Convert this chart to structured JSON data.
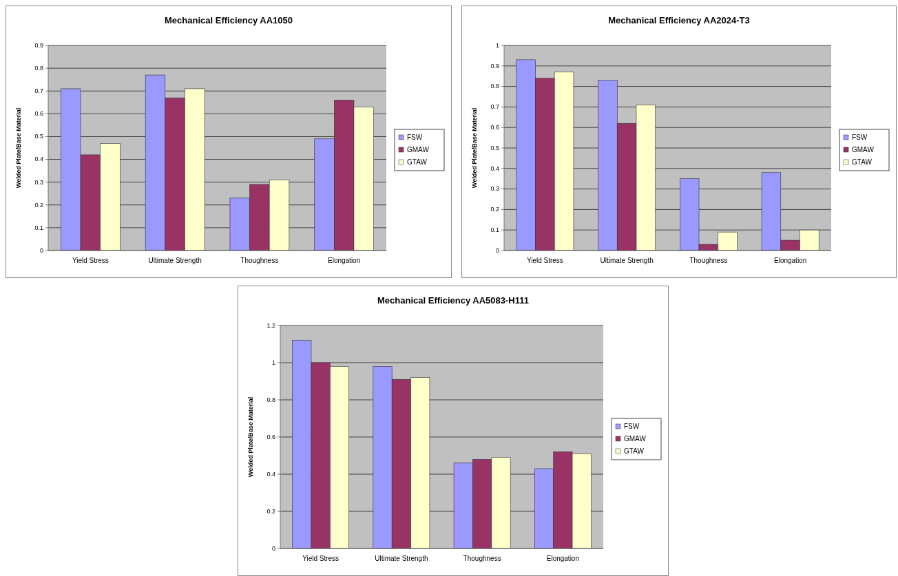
{
  "chart_data": [
    {
      "type": "bar",
      "title": "Mechanical Efficiency AA1050",
      "ylabel": "Welded Plate/Base Material",
      "categories": [
        "Yield Stress",
        "Ultimate Strength",
        "Thoughness",
        "Elongation"
      ],
      "series": [
        {
          "name": "FSW",
          "color": "#9999ff",
          "values": [
            0.71,
            0.77,
            0.23,
            0.49
          ]
        },
        {
          "name": "GMAW",
          "color": "#993366",
          "values": [
            0.42,
            0.67,
            0.29,
            0.66
          ]
        },
        {
          "name": "GTAW",
          "color": "#ffffcc",
          "values": [
            0.47,
            0.71,
            0.31,
            0.63
          ]
        }
      ],
      "ylim": [
        0,
        0.9
      ],
      "yticks": [
        0,
        0.1,
        0.2,
        0.3,
        0.4,
        0.5,
        0.6,
        0.7,
        0.8,
        0.9
      ],
      "grid": "y",
      "legend": "right"
    },
    {
      "type": "bar",
      "title": "Mechanical Efficiency AA2024-T3",
      "ylabel": "Welded Plate/Base Material",
      "categories": [
        "Yield Stress",
        "Ultimate Strength",
        "Thoughness",
        "Elongation"
      ],
      "series": [
        {
          "name": "FSW",
          "color": "#9999ff",
          "values": [
            0.93,
            0.83,
            0.35,
            0.38
          ]
        },
        {
          "name": "GMAW",
          "color": "#993366",
          "values": [
            0.84,
            0.62,
            0.03,
            0.05
          ]
        },
        {
          "name": "GTAW",
          "color": "#ffffcc",
          "values": [
            0.87,
            0.71,
            0.09,
            0.1
          ]
        }
      ],
      "ylim": [
        0,
        1
      ],
      "yticks": [
        0,
        0.1,
        0.2,
        0.3,
        0.4,
        0.5,
        0.6,
        0.7,
        0.8,
        0.9,
        1
      ],
      "grid": "y",
      "legend": "right"
    },
    {
      "type": "bar",
      "title": "Mechanical Efficiency AA5083-H111",
      "ylabel": "Welded Plate/Base Material",
      "categories": [
        "Yield Stress",
        "Ultimate Strength",
        "Thoughness",
        "Elongation"
      ],
      "series": [
        {
          "name": "FSW",
          "color": "#9999ff",
          "values": [
            1.12,
            0.98,
            0.46,
            0.43
          ]
        },
        {
          "name": "GMAW",
          "color": "#993366",
          "values": [
            1.0,
            0.91,
            0.48,
            0.52
          ]
        },
        {
          "name": "GTAW",
          "color": "#ffffcc",
          "values": [
            0.98,
            0.92,
            0.49,
            0.51
          ]
        }
      ],
      "ylim": [
        0,
        1.2
      ],
      "yticks": [
        0,
        0.2,
        0.4,
        0.6,
        0.8,
        1,
        1.2
      ],
      "grid": "y",
      "legend": "right"
    }
  ]
}
